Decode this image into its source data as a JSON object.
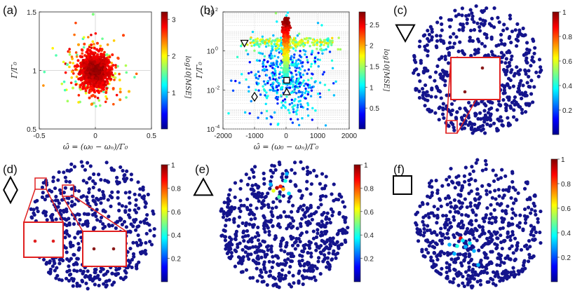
{
  "panel_labels": [
    "(a)",
    "(b)",
    "(c)",
    "(d)",
    "(e)",
    "(f)"
  ],
  "chart_data": [
    {
      "id": "a",
      "type": "scatter",
      "xlabel": "ω̂ = (ω₀ − ωₙ)/Γ₀",
      "ylabel": "Γ/Γ₀",
      "xlim": [
        -0.5,
        0.5
      ],
      "ylim": [
        0.5,
        1.5
      ],
      "xticks": [
        "-0.5",
        "0",
        "0.5"
      ],
      "yticks": [
        "0.5",
        "1",
        "1.5"
      ],
      "colorbar_label": "log10[MSE]",
      "colorbar_range": [
        0,
        3.2
      ],
      "colorbar_ticks": [
        "1",
        "2",
        "3"
      ],
      "grid": true,
      "description_points": [
        {
          "x": 0.0,
          "y": 1.0,
          "c": 3.0
        },
        {
          "x": -0.05,
          "y": 1.05,
          "c": 2.9
        },
        {
          "x": 0.05,
          "y": 0.95,
          "c": 3.0
        },
        {
          "x": -0.15,
          "y": 1.22,
          "c": 2.3
        },
        {
          "x": 0.25,
          "y": 1.3,
          "c": 2.6
        },
        {
          "x": -0.02,
          "y": 1.48,
          "c": 1.6
        },
        {
          "x": -0.2,
          "y": 0.85,
          "c": 1.8
        },
        {
          "x": 0.3,
          "y": 0.82,
          "c": 2.2
        },
        {
          "x": -0.25,
          "y": 1.05,
          "c": 1.5
        },
        {
          "x": 0.22,
          "y": 0.75,
          "c": 2.4
        }
      ]
    },
    {
      "id": "b",
      "type": "scatter",
      "xlabel": "ω̂ = (ω₀ − ωₙ)/Γ₀",
      "ylabel": "Γ/Γ₀",
      "xlim": [
        -2000,
        2000
      ],
      "ylim_log10": [
        -4,
        2
      ],
      "yscale": "log",
      "xticks": [
        "-2000",
        "-1000",
        "0",
        "1000",
        "2000"
      ],
      "yticks": [
        "10",
        "10",
        "10",
        "10"
      ],
      "ytick_exponents": [
        "-4",
        "-2",
        "0",
        "2"
      ],
      "colorbar_label": "log10[MSE]",
      "colorbar_range": [
        0,
        2.8
      ],
      "colorbar_ticks": [
        "0.5",
        "1",
        "1.5",
        "2",
        "2.5"
      ],
      "grid": true,
      "markers": [
        {
          "shape": "down-triangle",
          "x": -1320,
          "log10y": 0.4
        },
        {
          "shape": "diamond",
          "x": -1000,
          "log10y": -2.35
        },
        {
          "shape": "up-triangle",
          "x": 20,
          "log10y": -2.1
        },
        {
          "shape": "square",
          "x": 20,
          "log10y": -1.5
        }
      ]
    },
    {
      "id": "c",
      "type": "scatter",
      "marker": "down-triangle",
      "colorbar_range": [
        0,
        1
      ],
      "colorbar_ticks": [
        "0.2",
        "0.4",
        "0.6",
        "0.8",
        "1"
      ]
    },
    {
      "id": "d",
      "type": "scatter",
      "marker": "diamond",
      "colorbar_range": [
        0,
        1
      ],
      "colorbar_ticks": [
        "0.2",
        "0.4",
        "0.6",
        "0.8",
        "1"
      ]
    },
    {
      "id": "e",
      "type": "scatter",
      "marker": "up-triangle",
      "colorbar_range": [
        0,
        1
      ],
      "colorbar_ticks": [
        "0.2",
        "0.4",
        "0.6",
        "0.8",
        "1"
      ]
    },
    {
      "id": "f",
      "type": "scatter",
      "marker": "square",
      "colorbar_range": [
        0,
        1
      ],
      "colorbar_ticks": [
        "0.2",
        "0.4",
        "0.6",
        "0.8",
        "1"
      ]
    }
  ]
}
